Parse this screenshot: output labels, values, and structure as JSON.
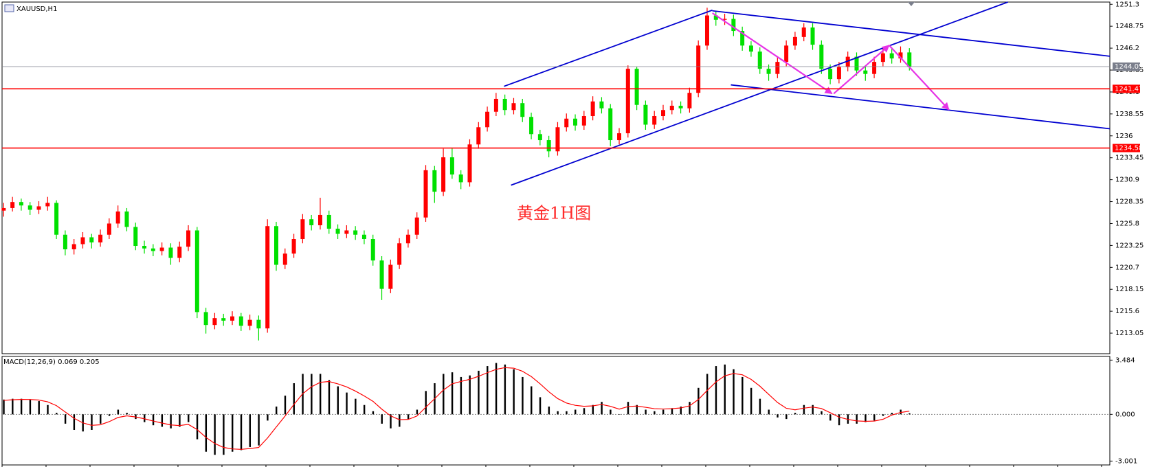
{
  "chart_data": [
    {
      "type": "candlestick",
      "title": "XAUUSD,H1",
      "annotation": "黄金1H图",
      "up_color": "#ff0000",
      "down_color": "#00e000",
      "ylim": [
        1210.66,
        1251.56
      ],
      "yticks": [
        1251.3,
        1248.75,
        1246.2,
        1243.65,
        1241.1,
        1238.55,
        1236.0,
        1233.45,
        1230.9,
        1228.35,
        1225.8,
        1223.25,
        1220.7,
        1218.15,
        1215.6,
        1213.05
      ],
      "levels": [
        {
          "value": 1241.47,
          "color": "#ff0000"
        },
        {
          "value": 1234.58,
          "color": "#ff0000"
        }
      ],
      "current_price": {
        "value": 1244.05,
        "color": "#7b7f8c"
      },
      "trendlines": [
        {
          "points": [
            [
              56.9,
              1241.76
            ],
            [
              80.6,
              1250.62
            ]
          ],
          "color": "#0000d0"
        },
        {
          "points": [
            [
              57.7,
              1230.26
            ],
            [
              114.2,
              1251.56
            ]
          ],
          "color": "#0000d0"
        },
        {
          "points": [
            [
              80.6,
              1250.54
            ],
            [
              125.8,
              1245.26
            ]
          ],
          "color": "#0000d0"
        },
        {
          "points": [
            [
              82.7,
              1241.93
            ],
            [
              125.8,
              1236.82
            ]
          ],
          "color": "#0000d0"
        }
      ],
      "arrows": [
        {
          "points": [
            [
              80.6,
              1250.28
            ],
            [
              94.2,
              1240.91
            ]
          ],
          "color": "#e633e6"
        },
        {
          "points": [
            [
              94.4,
              1240.91
            ],
            [
              100.7,
              1246.53
            ]
          ],
          "color": "#e633e6"
        },
        {
          "points": [
            [
              100.7,
              1246.53
            ],
            [
              107.5,
              1239.04
            ]
          ],
          "color": "#e633e6"
        }
      ],
      "candles": [
        [
          1227.3,
          1228.2,
          1226.6,
          1227.6
        ],
        [
          1227.6,
          1228.9,
          1227.2,
          1228.3
        ],
        [
          1228.3,
          1228.7,
          1227.3,
          1227.9
        ],
        [
          1227.9,
          1228.3,
          1226.8,
          1227.4
        ],
        [
          1227.4,
          1228.4,
          1226.9,
          1227.8
        ],
        [
          1227.8,
          1228.9,
          1227.3,
          1228.2
        ],
        [
          1228.2,
          1228.5,
          1224.0,
          1224.5
        ],
        [
          1224.5,
          1225.0,
          1222.1,
          1222.8
        ],
        [
          1222.8,
          1224.0,
          1222.2,
          1223.4
        ],
        [
          1223.4,
          1224.8,
          1222.9,
          1224.2
        ],
        [
          1224.2,
          1224.6,
          1222.9,
          1223.6
        ],
        [
          1223.6,
          1225.1,
          1223.1,
          1224.5
        ],
        [
          1224.5,
          1226.4,
          1224.0,
          1225.8
        ],
        [
          1225.8,
          1227.9,
          1225.3,
          1227.2
        ],
        [
          1227.2,
          1227.6,
          1224.9,
          1225.4
        ],
        [
          1225.4,
          1225.9,
          1222.7,
          1223.2
        ],
        [
          1223.2,
          1223.8,
          1222.3,
          1222.9
        ],
        [
          1222.9,
          1223.4,
          1222.0,
          1222.6
        ],
        [
          1222.6,
          1223.6,
          1222.1,
          1223.0
        ],
        [
          1223.0,
          1223.5,
          1221.0,
          1221.8
        ],
        [
          1221.8,
          1223.7,
          1221.3,
          1223.1
        ],
        [
          1223.1,
          1225.6,
          1222.6,
          1225.0
        ],
        [
          1225.0,
          1225.4,
          1214.8,
          1215.5
        ],
        [
          1215.5,
          1216.0,
          1213.0,
          1214.0
        ],
        [
          1214.0,
          1215.4,
          1213.5,
          1214.8
        ],
        [
          1214.8,
          1215.3,
          1213.9,
          1214.5
        ],
        [
          1214.5,
          1215.6,
          1214.0,
          1215.0
        ],
        [
          1215.0,
          1215.4,
          1213.3,
          1213.9
        ],
        [
          1213.9,
          1215.2,
          1213.4,
          1214.6
        ],
        [
          1214.6,
          1215.1,
          1212.2,
          1213.6
        ],
        [
          1213.6,
          1226.3,
          1213.1,
          1225.5
        ],
        [
          1225.5,
          1226.0,
          1220.3,
          1221.0
        ],
        [
          1221.0,
          1222.9,
          1220.5,
          1222.3
        ],
        [
          1222.3,
          1224.6,
          1221.8,
          1224.0
        ],
        [
          1224.0,
          1226.9,
          1223.5,
          1226.3
        ],
        [
          1226.3,
          1226.8,
          1225.0,
          1225.6
        ],
        [
          1225.6,
          1228.8,
          1225.1,
          1226.8
        ],
        [
          1226.8,
          1227.3,
          1224.6,
          1225.2
        ],
        [
          1225.2,
          1225.7,
          1224.0,
          1224.6
        ],
        [
          1224.6,
          1225.6,
          1224.1,
          1225.0
        ],
        [
          1225.0,
          1225.5,
          1223.9,
          1224.5
        ],
        [
          1224.5,
          1225.0,
          1223.4,
          1224.0
        ],
        [
          1224.0,
          1224.5,
          1220.9,
          1221.5
        ],
        [
          1221.5,
          1222.0,
          1216.9,
          1218.2
        ],
        [
          1218.2,
          1221.6,
          1217.7,
          1221.0
        ],
        [
          1221.0,
          1224.1,
          1220.5,
          1223.5
        ],
        [
          1223.5,
          1225.1,
          1223.0,
          1224.5
        ],
        [
          1224.5,
          1227.1,
          1224.0,
          1226.5
        ],
        [
          1226.5,
          1232.6,
          1226.0,
          1232.0
        ],
        [
          1232.0,
          1232.5,
          1228.2,
          1229.5
        ],
        [
          1229.5,
          1234.5,
          1229.0,
          1233.5
        ],
        [
          1233.5,
          1234.6,
          1231.0,
          1231.5
        ],
        [
          1231.5,
          1232.0,
          1229.8,
          1230.6
        ],
        [
          1230.6,
          1235.6,
          1230.1,
          1235.0
        ],
        [
          1235.0,
          1237.6,
          1234.5,
          1237.0
        ],
        [
          1237.0,
          1239.4,
          1236.5,
          1238.8
        ],
        [
          1238.8,
          1241.0,
          1238.3,
          1240.3
        ],
        [
          1240.3,
          1240.8,
          1238.4,
          1239.0
        ],
        [
          1239.0,
          1240.4,
          1238.5,
          1239.8
        ],
        [
          1239.8,
          1240.3,
          1237.6,
          1238.2
        ],
        [
          1238.2,
          1238.7,
          1235.6,
          1236.2
        ],
        [
          1236.2,
          1236.7,
          1234.9,
          1235.5
        ],
        [
          1235.5,
          1236.0,
          1233.5,
          1234.2
        ],
        [
          1234.2,
          1237.6,
          1233.7,
          1237.0
        ],
        [
          1237.0,
          1238.6,
          1236.5,
          1238.0
        ],
        [
          1238.0,
          1238.5,
          1236.6,
          1237.2
        ],
        [
          1237.2,
          1238.9,
          1236.7,
          1238.3
        ],
        [
          1238.3,
          1240.6,
          1237.8,
          1240.0
        ],
        [
          1240.0,
          1240.5,
          1238.6,
          1239.2
        ],
        [
          1239.2,
          1239.7,
          1234.8,
          1235.5
        ],
        [
          1235.5,
          1236.9,
          1235.0,
          1236.3
        ],
        [
          1236.3,
          1244.2,
          1235.8,
          1243.8
        ],
        [
          1243.8,
          1244.0,
          1239.0,
          1239.6
        ],
        [
          1239.6,
          1240.1,
          1236.7,
          1237.3
        ],
        [
          1237.3,
          1238.9,
          1236.8,
          1238.3
        ],
        [
          1238.3,
          1239.6,
          1237.8,
          1239.0
        ],
        [
          1239.0,
          1240.1,
          1238.5,
          1239.5
        ],
        [
          1239.5,
          1240.0,
          1238.6,
          1239.2
        ],
        [
          1239.2,
          1241.6,
          1238.7,
          1241.0
        ],
        [
          1241.0,
          1247.1,
          1240.5,
          1246.5
        ],
        [
          1246.5,
          1250.9,
          1246.0,
          1250.0
        ],
        [
          1250.0,
          1250.5,
          1248.8,
          1249.5
        ],
        [
          1249.5,
          1250.2,
          1248.9,
          1249.6
        ],
        [
          1249.6,
          1250.1,
          1247.6,
          1248.2
        ],
        [
          1248.2,
          1248.7,
          1245.9,
          1246.5
        ],
        [
          1246.5,
          1247.0,
          1245.2,
          1245.8
        ],
        [
          1245.8,
          1246.3,
          1243.2,
          1243.8
        ],
        [
          1243.8,
          1244.3,
          1242.4,
          1243.2
        ],
        [
          1243.2,
          1245.2,
          1242.7,
          1244.6
        ],
        [
          1244.6,
          1247.1,
          1244.1,
          1246.5
        ],
        [
          1246.5,
          1248.1,
          1246.0,
          1247.5
        ],
        [
          1247.5,
          1249.1,
          1247.0,
          1248.6
        ],
        [
          1248.6,
          1249.1,
          1246.0,
          1246.6
        ],
        [
          1246.6,
          1247.1,
          1243.2,
          1243.8
        ],
        [
          1243.8,
          1244.3,
          1242.0,
          1242.6
        ],
        [
          1242.6,
          1244.6,
          1242.1,
          1244.0
        ],
        [
          1244.0,
          1245.8,
          1243.5,
          1245.2
        ],
        [
          1245.2,
          1245.7,
          1243.0,
          1243.6
        ],
        [
          1243.6,
          1244.1,
          1242.4,
          1243.2
        ],
        [
          1243.2,
          1245.2,
          1242.7,
          1244.6
        ],
        [
          1244.6,
          1246.2,
          1244.1,
          1245.6
        ],
        [
          1245.6,
          1246.1,
          1244.4,
          1245.0
        ],
        [
          1245.0,
          1246.4,
          1244.5,
          1245.7
        ],
        [
          1245.7,
          1246.2,
          1243.6,
          1244.05
        ]
      ]
    },
    {
      "type": "macd",
      "title": "MACD(12,26,9) 0.069 0.205",
      "color": "#000000",
      "signal_color": "#ff0000",
      "ylim": [
        -3.25,
        3.72
      ],
      "yticks": [
        3.484,
        {
          "value": 0,
          "label": "0.000"
        },
        -3.001
      ],
      "values": [
        0.95,
        1.0,
        1.0,
        0.95,
        0.85,
        0.6,
        0.1,
        -0.6,
        -1.0,
        -1.1,
        -1.0,
        -0.6,
        -0.1,
        0.3,
        0.1,
        -0.3,
        -0.5,
        -0.7,
        -0.8,
        -0.9,
        -0.8,
        -0.5,
        -1.6,
        -2.4,
        -2.6,
        -2.6,
        -2.4,
        -2.3,
        -2.1,
        -2.0,
        -0.4,
        0.5,
        1.2,
        2.0,
        2.6,
        2.6,
        2.6,
        2.2,
        1.8,
        1.4,
        1.0,
        0.6,
        0.2,
        -0.6,
        -0.9,
        -0.8,
        -0.3,
        0.3,
        1.5,
        2.0,
        2.6,
        2.7,
        2.4,
        2.5,
        2.8,
        3.1,
        3.3,
        3.2,
        2.9,
        2.4,
        1.8,
        1.1,
        0.5,
        0.2,
        0.2,
        0.3,
        0.4,
        0.6,
        0.8,
        0.3,
        0.0,
        0.8,
        0.6,
        0.3,
        0.2,
        0.3,
        0.4,
        0.5,
        0.8,
        1.7,
        2.6,
        3.1,
        3.2,
        2.9,
        2.4,
        1.7,
        1.0,
        0.3,
        -0.2,
        -0.3,
        0.1,
        0.6,
        0.6,
        0.2,
        -0.4,
        -0.7,
        -0.6,
        -0.6,
        -0.5,
        -0.4,
        -0.1,
        0.1,
        0.3,
        0.069
      ],
      "signal": [
        0.9,
        0.935,
        0.958,
        0.955,
        0.918,
        0.807,
        0.56,
        0.154,
        -0.25,
        -0.548,
        -0.706,
        -0.669,
        -0.47,
        -0.2,
        -0.095,
        -0.167,
        -0.284,
        -0.43,
        -0.56,
        -0.679,
        -0.721,
        -0.644,
        -0.979,
        -1.477,
        -1.87,
        -2.126,
        -2.222,
        -2.249,
        -2.197,
        -2.128,
        -1.523,
        -0.815,
        -0.11,
        0.629,
        1.319,
        1.767,
        2.058,
        2.108,
        1.96,
        1.764,
        1.496,
        1.182,
        0.838,
        0.335,
        -0.097,
        -0.343,
        -0.328,
        -0.108,
        0.455,
        0.996,
        1.558,
        1.958,
        2.113,
        2.248,
        2.441,
        2.672,
        2.892,
        3.0,
        2.965,
        2.767,
        2.429,
        1.964,
        1.452,
        1.014,
        0.729,
        0.579,
        0.516,
        0.545,
        0.634,
        0.517,
        0.336,
        0.498,
        0.534,
        0.452,
        0.364,
        0.342,
        0.362,
        0.41,
        0.547,
        0.951,
        1.528,
        2.078,
        2.471,
        2.621,
        2.544,
        2.249,
        1.812,
        1.283,
        0.764,
        0.392,
        0.29,
        0.398,
        0.469,
        0.375,
        0.104,
        -0.177,
        -0.325,
        -0.421,
        -0.449,
        -0.432,
        -0.316,
        -0.05,
        0.12,
        0.205
      ]
    }
  ]
}
